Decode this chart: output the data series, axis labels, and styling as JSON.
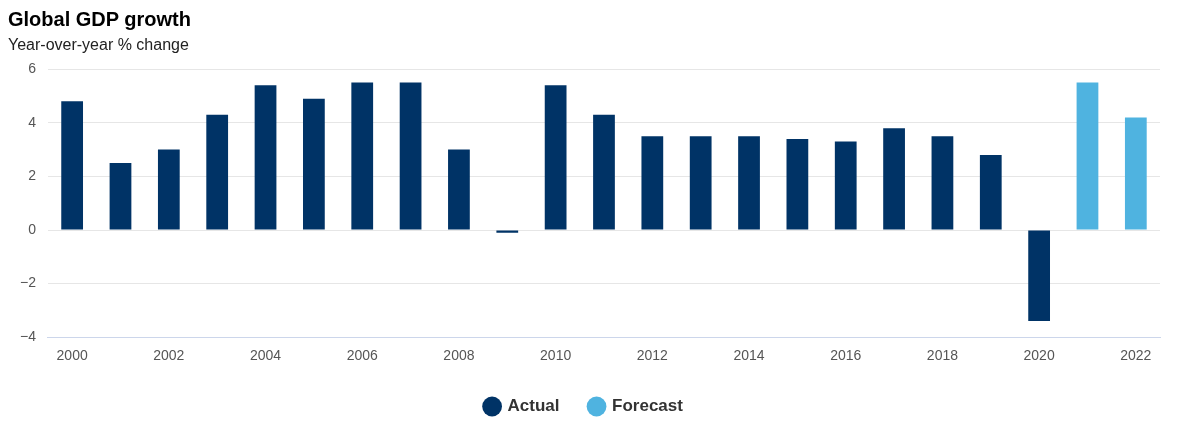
{
  "chart_data": {
    "type": "bar",
    "title": "Global GDP growth",
    "subtitle": "Year-over-year % change",
    "categories": [
      "2000",
      null,
      "2002",
      null,
      "2004",
      null,
      "2006",
      null,
      "2008",
      null,
      "2010",
      null,
      "2012",
      null,
      "2014",
      null,
      "2016",
      null,
      "2018",
      null,
      "2020",
      null,
      "2022"
    ],
    "series": [
      {
        "name": "Actual",
        "color": "#003366",
        "values": [
          4.8,
          2.5,
          3.0,
          4.3,
          5.4,
          4.9,
          5.5,
          5.5,
          3.0,
          -0.1,
          5.4,
          4.3,
          3.5,
          3.5,
          3.5,
          3.4,
          3.3,
          3.8,
          3.5,
          2.8,
          -3.4,
          null,
          null
        ]
      },
      {
        "name": "Forecast",
        "color": "#4fb3e0",
        "values": [
          null,
          null,
          null,
          null,
          null,
          null,
          null,
          null,
          null,
          null,
          null,
          null,
          null,
          null,
          null,
          null,
          null,
          null,
          null,
          null,
          null,
          5.5,
          4.2
        ]
      }
    ],
    "ylim": [
      -4,
      6
    ],
    "yticks": [
      -4,
      -2,
      0,
      2,
      4,
      6
    ],
    "grid": "y",
    "legend": "bottom"
  }
}
